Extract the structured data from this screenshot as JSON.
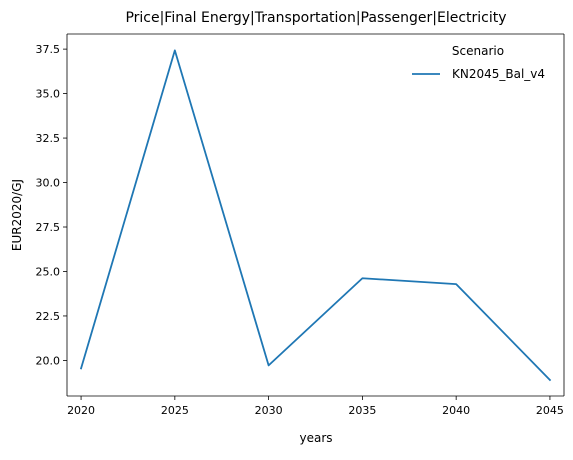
{
  "chart_data": {
    "type": "line",
    "title": "Price|Final Energy|Transportation|Passenger|Electricity",
    "xlabel": "years",
    "ylabel": "EUR2020/GJ",
    "x": [
      2020,
      2025,
      2030,
      2035,
      2040,
      2045
    ],
    "series": [
      {
        "name": "KN2045_Bal_v4",
        "values": [
          19.55,
          37.43,
          19.72,
          24.62,
          24.29,
          18.9
        ],
        "color": "#1f77b4"
      }
    ],
    "xticks": [
      2020,
      2025,
      2030,
      2035,
      2040,
      2045
    ],
    "xtick_labels": [
      "2020",
      "2025",
      "2030",
      "2035",
      "2040",
      "2045"
    ],
    "yticks": [
      20.0,
      22.5,
      25.0,
      27.5,
      30.0,
      32.5,
      35.0,
      37.5
    ],
    "ytick_labels": [
      "20.0",
      "22.5",
      "25.0",
      "27.5",
      "30.0",
      "32.5",
      "35.0",
      "37.5"
    ],
    "xlim": [
      2019.25,
      2045.75
    ],
    "ylim": [
      18.0,
      38.35
    ],
    "grid": false,
    "legend": {
      "title": "Scenario",
      "position": "top-right",
      "frame": false
    }
  }
}
